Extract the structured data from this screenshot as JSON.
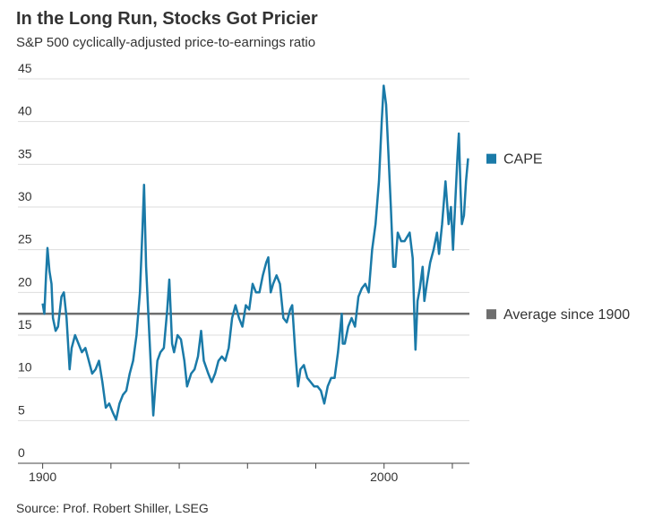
{
  "chart_data": {
    "type": "line",
    "title": "In the Long Run, Stocks Got Pricier",
    "subtitle": "S&P 500 cyclically-adjusted price-to-earnings ratio",
    "source": "Source: Prof. Robert Shiller, LSEG",
    "series": [
      {
        "name": "CAPE",
        "color": "#1a7aa8",
        "x": [
          1900,
          1900.5,
          1901,
          1901.4,
          1902,
          1902.6,
          1903,
          1903.8,
          1904.5,
          1905.5,
          1906.2,
          1907,
          1907.9,
          1908.5,
          1909.5,
          1910.5,
          1911.5,
          1912.5,
          1913.5,
          1914.5,
          1915.5,
          1916.5,
          1917.5,
          1918.5,
          1919.5,
          1920.5,
          1921.5,
          1922.5,
          1923.5,
          1924.5,
          1925.5,
          1926.5,
          1927.5,
          1928.5,
          1929.2,
          1929.7,
          1930.3,
          1931,
          1931.6,
          1932.4,
          1933,
          1933.6,
          1934.5,
          1935.5,
          1936.5,
          1937.1,
          1937.9,
          1938.5,
          1939.5,
          1940.5,
          1941.5,
          1942.3,
          1943.5,
          1944.5,
          1945.5,
          1946.4,
          1947.2,
          1948.5,
          1949.5,
          1950.5,
          1951.5,
          1952.5,
          1953.5,
          1954.5,
          1955.5,
          1956.5,
          1957.5,
          1958.5,
          1959.5,
          1960.5,
          1961.5,
          1962.5,
          1963.5,
          1964.5,
          1965.5,
          1966.1,
          1966.8,
          1967.5,
          1968.5,
          1969.5,
          1970.5,
          1971.5,
          1972.5,
          1973.1,
          1974,
          1974.8,
          1975.5,
          1976.5,
          1977.5,
          1978.5,
          1979.5,
          1980.5,
          1981.5,
          1982.5,
          1983.5,
          1984.5,
          1985.5,
          1986.5,
          1987.6,
          1987.9,
          1988.5,
          1989.5,
          1990.5,
          1991.5,
          1992.5,
          1993.5,
          1994.5,
          1995.5,
          1996.5,
          1997.5,
          1998.5,
          1999.3,
          1999.9,
          2000.6,
          2001.3,
          2002,
          2002.7,
          2003.3,
          2004,
          2005,
          2006,
          2007.5,
          2008.4,
          2008.9,
          2009.2,
          2009.8,
          2010.5,
          2011.3,
          2011.8,
          2012.5,
          2013.5,
          2014.5,
          2015.5,
          2016.1,
          2017,
          2018,
          2018.9,
          2019.6,
          2020.2,
          2020.9,
          2021.5,
          2021.9,
          2022.4,
          2022.8,
          2023.4,
          2024,
          2024.6
        ],
        "values": [
          18.7,
          17.5,
          22,
          25.2,
          22.5,
          21,
          17,
          15.5,
          16,
          19.5,
          20,
          17,
          11,
          13.5,
          15,
          14,
          13,
          13.5,
          12,
          10.5,
          11,
          12,
          9.5,
          6.5,
          7,
          6,
          5.1,
          7,
          8,
          8.5,
          10.5,
          12,
          15,
          20,
          27,
          32.6,
          23,
          17,
          12,
          5.6,
          9,
          12,
          13,
          13.5,
          18,
          21.5,
          14,
          13,
          15,
          14.5,
          12,
          9,
          10.5,
          11,
          12.5,
          15.5,
          12,
          10.5,
          9.5,
          10.5,
          12,
          12.5,
          12,
          13.5,
          17,
          18.5,
          17,
          16,
          18.5,
          18,
          21,
          20,
          20,
          22,
          23.5,
          24.1,
          20,
          21,
          22,
          21,
          17,
          16.5,
          18,
          18.5,
          13,
          9,
          11,
          11.5,
          10,
          9.5,
          9,
          9,
          8.5,
          7,
          9,
          10,
          10,
          13,
          17.5,
          14,
          14,
          16,
          17,
          16,
          19.5,
          20.5,
          21,
          20,
          25,
          28,
          33,
          40,
          44.2,
          42,
          36,
          30,
          23,
          23,
          27,
          26,
          26,
          27,
          24,
          17,
          13.3,
          19,
          20.5,
          23,
          19,
          21,
          23.5,
          25,
          27,
          24.5,
          28,
          33,
          28,
          30,
          25,
          31,
          36,
          38.6,
          32,
          28,
          29,
          33,
          35.7
        ]
      }
    ],
    "reference": {
      "name": "Average since 1900",
      "value": 17.5,
      "color": "#6e6e6e"
    },
    "xlim": [
      1898,
      2025
    ],
    "xticks": [
      1900,
      2000
    ],
    "xminor_ticks": [
      1920,
      1940,
      1960,
      1980,
      2020
    ],
    "ylim": [
      0,
      45
    ],
    "yticks": [
      0,
      5,
      10,
      15,
      20,
      25,
      30,
      35,
      40,
      45
    ],
    "grid": true
  }
}
